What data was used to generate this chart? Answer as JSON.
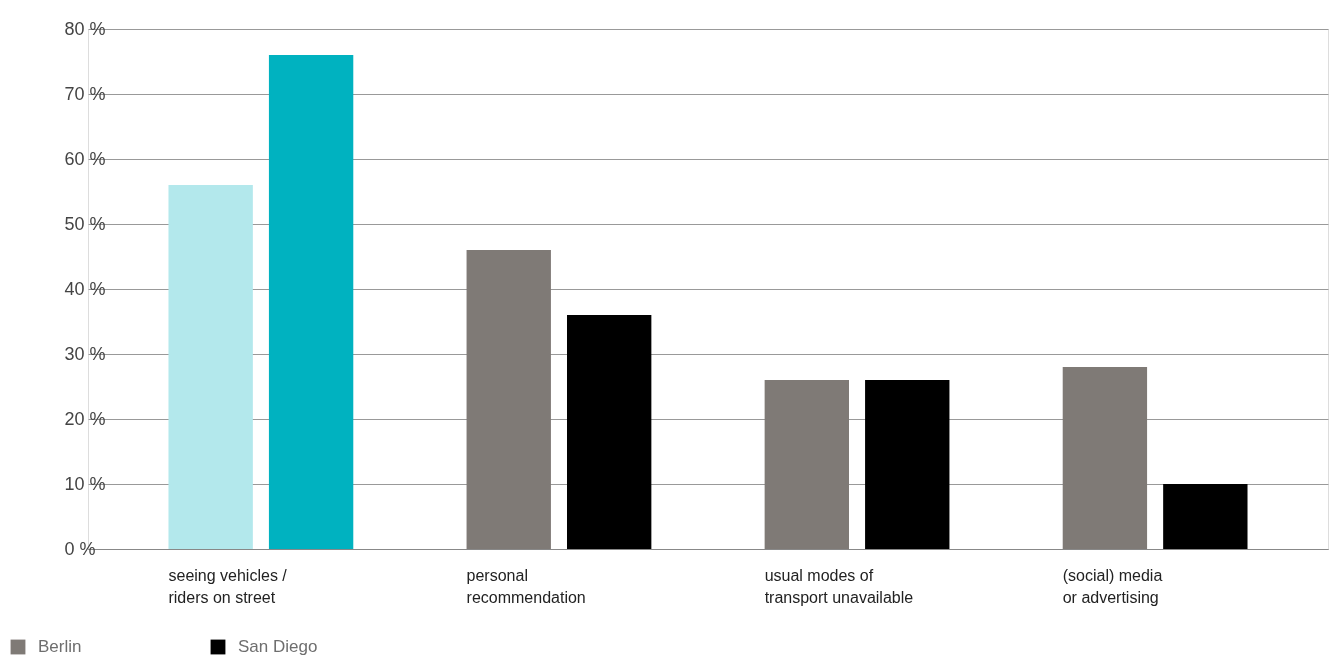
{
  "chart_data": {
    "type": "bar",
    "categories": [
      "seeing vehicles /\nriders on street",
      "personal\nrecommendation",
      "usual modes of\ntransport unavailable",
      "(social) media\nor advertising"
    ],
    "series": [
      {
        "name": "Berlin",
        "color": "#7f7a76",
        "colors": [
          "#b3e8ec",
          "#7f7a76",
          "#7f7a76",
          "#7f7a76"
        ],
        "values": [
          56,
          46,
          26,
          28
        ]
      },
      {
        "name": "San Diego",
        "color": "#000000",
        "colors": [
          "#00b2c0",
          "#000000",
          "#000000",
          "#000000"
        ],
        "values": [
          76,
          36,
          26,
          10
        ]
      }
    ],
    "ylim": [
      0,
      80
    ],
    "yticks": [
      {
        "value": 0,
        "label": "0 %"
      },
      {
        "value": 10,
        "label": "10 %"
      },
      {
        "value": 20,
        "label": "20 %"
      },
      {
        "value": 30,
        "label": "30 %"
      },
      {
        "value": 40,
        "label": "40 %"
      },
      {
        "value": 50,
        "label": "50 %"
      },
      {
        "value": 60,
        "label": "60 %"
      },
      {
        "value": 70,
        "label": "70 %"
      },
      {
        "value": 80,
        "label": "80 %"
      }
    ],
    "grid": "y",
    "legend": "bottom left"
  }
}
